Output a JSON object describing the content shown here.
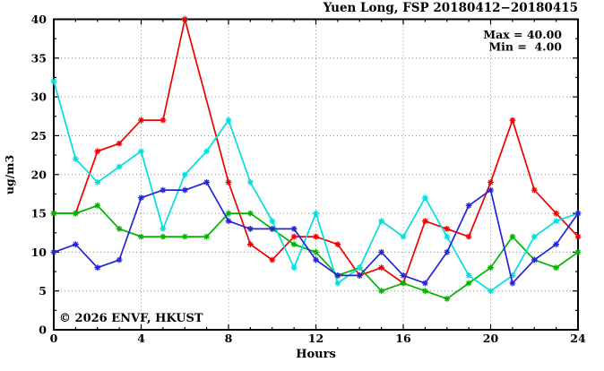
{
  "figure": {
    "title": "Yuen Long, FSP 20180412−20180415",
    "xlabel": "Hours",
    "ylabel": "ug/m3",
    "watermark": "© 2026 ENVF, HKUST",
    "annotation": {
      "max_label": "Max = 40.00",
      "min_label": "Min =  4.00"
    }
  },
  "chart_data": {
    "type": "line",
    "title": "Yuen Long, FSP 20180412−20180415",
    "xlabel": "Hours",
    "ylabel": "ug/m3",
    "xlim": [
      0,
      24
    ],
    "ylim": [
      0,
      40
    ],
    "x_major_ticks": [
      0,
      4,
      8,
      12,
      16,
      20,
      24
    ],
    "y_major_ticks": [
      0,
      5,
      10,
      15,
      20,
      25,
      30,
      35,
      40
    ],
    "x_minor_step": 1,
    "y_minor_step": 2.5,
    "grid": true,
    "legend_position": "none",
    "stats": {
      "max": 40.0,
      "min": 4.0
    },
    "x": [
      0,
      1,
      2,
      3,
      4,
      5,
      6,
      7,
      8,
      9,
      10,
      11,
      12,
      13,
      14,
      15,
      16,
      17,
      18,
      19,
      20,
      21,
      22,
      23,
      24
    ],
    "series": [
      {
        "name": "red",
        "color": "#ee0000",
        "marker": "star",
        "values": [
          15,
          15,
          23,
          24,
          27,
          27,
          40,
          null,
          19,
          11,
          9,
          12,
          12,
          11,
          7,
          8,
          6,
          14,
          13,
          12,
          19,
          27,
          18,
          15,
          12
        ]
      },
      {
        "name": "green",
        "color": "#00b400",
        "marker": "star",
        "values": [
          15,
          15,
          16,
          13,
          12,
          12,
          12,
          12,
          15,
          15,
          13,
          11,
          10,
          7,
          8,
          5,
          6,
          5,
          4,
          6,
          8,
          12,
          9,
          8,
          10
        ]
      },
      {
        "name": "cyan",
        "color": "#00dede",
        "marker": "star",
        "values": [
          32,
          22,
          19,
          21,
          23,
          13,
          20,
          23,
          27,
          19,
          14,
          8,
          15,
          6,
          8,
          14,
          12,
          17,
          12,
          7,
          5,
          7,
          12,
          14,
          15
        ]
      },
      {
        "name": "blue",
        "color": "#2424d8",
        "marker": "star",
        "values": [
          10,
          11,
          8,
          9,
          17,
          18,
          18,
          19,
          14,
          13,
          13,
          13,
          9,
          7,
          7,
          10,
          7,
          6,
          10,
          16,
          18,
          6,
          9,
          11,
          15
        ]
      }
    ]
  },
  "colors": {
    "background": "#ffffff",
    "axis": "#000000",
    "grid": "#8a8a8a",
    "watermark": "#c9c9c9"
  }
}
